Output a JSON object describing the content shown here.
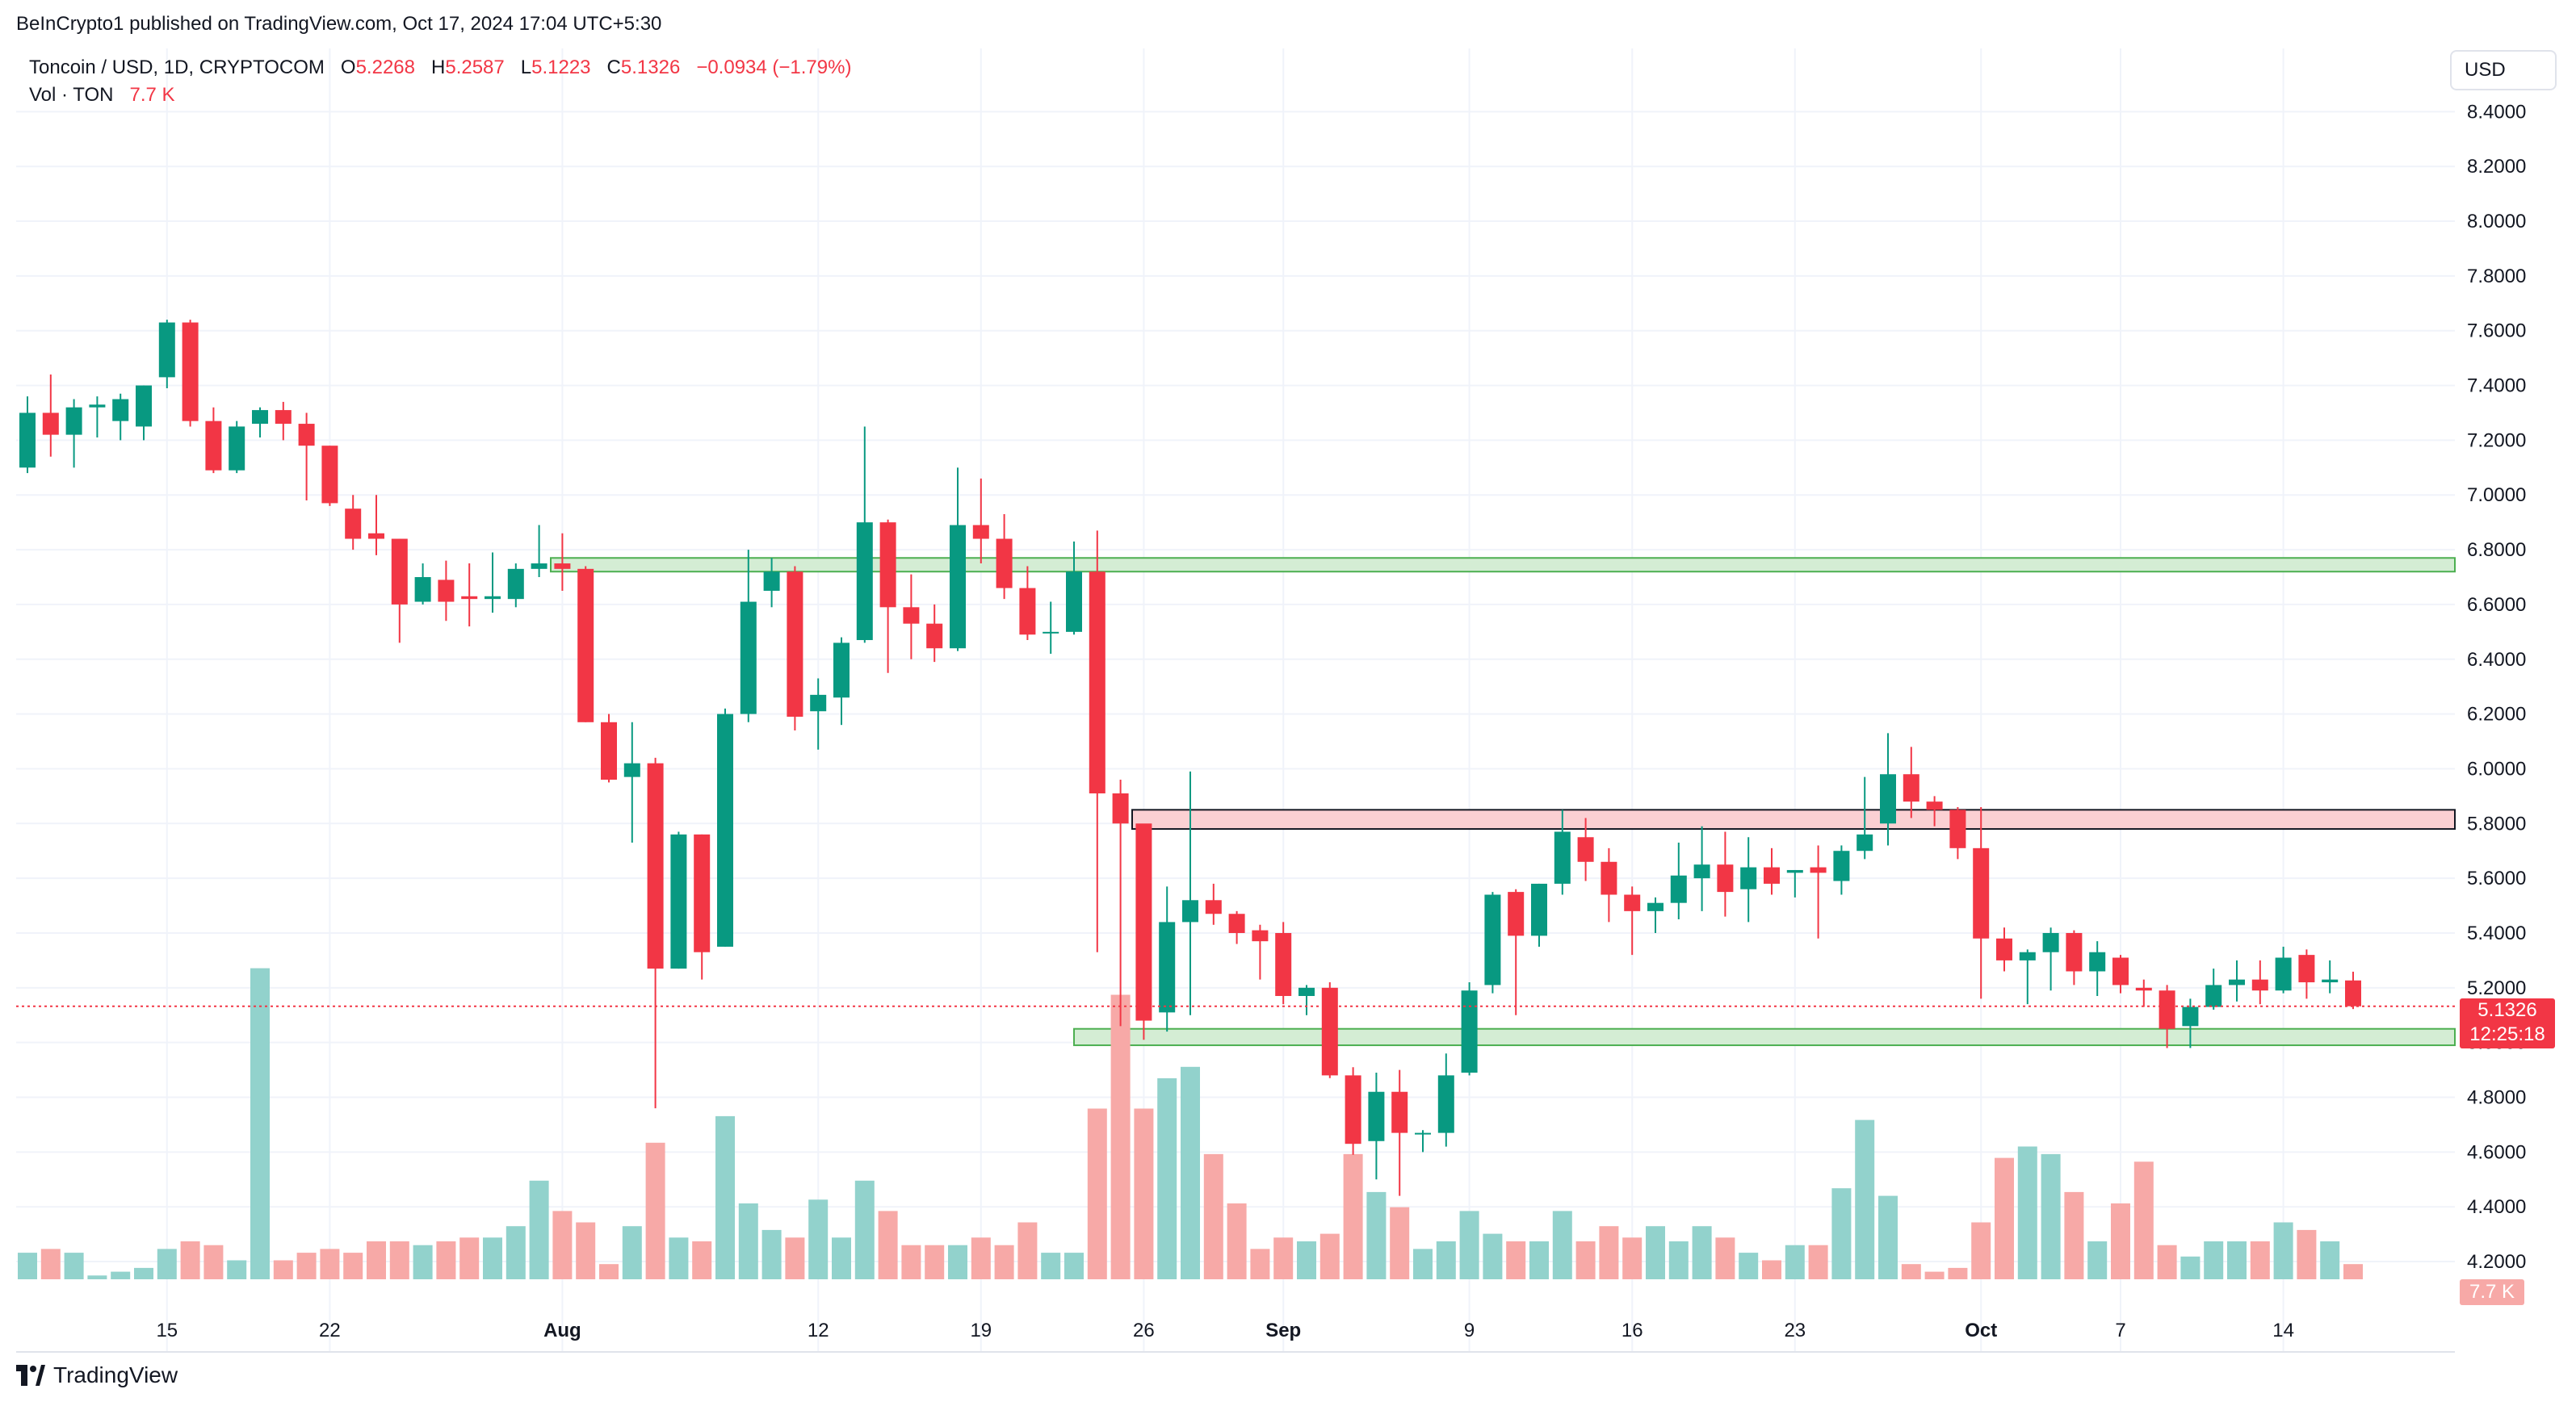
{
  "header": {
    "published": "BeInCrypto1 published on TradingView.com, Oct 17, 2024 17:04 UTC+5:30",
    "symbol": "Toncoin / USD, 1D, CRYPTOCOM",
    "open_label": "O",
    "open": "5.2268",
    "high_label": "H",
    "high": "5.2587",
    "low_label": "L",
    "low": "5.1223",
    "close_label": "C",
    "close": "5.1326",
    "change": "−0.0934 (−1.79%)",
    "vol_label": "Vol · TON",
    "vol_value": "7.7 K"
  },
  "currency_button": "USD",
  "price_tag": {
    "price": "5.1326",
    "countdown": "12:25:18"
  },
  "volume_tag": "7.7 K",
  "brand": "TradingView",
  "colors": {
    "up": "#089981",
    "down": "#f23645",
    "up_volume": "#92d2cc",
    "down_volume": "#f7a9a7",
    "support_zone": "#d4edd4",
    "resistance_zone": "#fbd0d3"
  },
  "chart_data": {
    "type": "candlestick",
    "title": "Toncoin / USD, 1D, CRYPTOCOM",
    "ylim": [
      4.15,
      8.46
    ],
    "y_ticks": [
      "4.2000",
      "4.4000",
      "4.6000",
      "4.8000",
      "5.0000",
      "5.2000",
      "5.4000",
      "5.6000",
      "5.8000",
      "6.0000",
      "6.2000",
      "6.4000",
      "6.6000",
      "6.8000",
      "7.0000",
      "7.2000",
      "7.4000",
      "7.6000",
      "7.8000",
      "8.0000",
      "8.2000",
      "8.4000"
    ],
    "x_ticks": [
      {
        "label": "15",
        "index": 6
      },
      {
        "label": "22",
        "index": 13
      },
      {
        "label": "Aug",
        "index": 23
      },
      {
        "label": "12",
        "index": 34
      },
      {
        "label": "19",
        "index": 41
      },
      {
        "label": "26",
        "index": 48
      },
      {
        "label": "Sep",
        "index": 54
      },
      {
        "label": "9",
        "index": 62
      },
      {
        "label": "16",
        "index": 69
      },
      {
        "label": "23",
        "index": 76
      },
      {
        "label": "Oct",
        "index": 84
      },
      {
        "label": "7",
        "index": 90
      },
      {
        "label": "14",
        "index": 97
      }
    ],
    "candles": [
      {
        "o": 7.1,
        "h": 7.36,
        "l": 7.08,
        "c": 7.3,
        "v": 0.7
      },
      {
        "o": 7.3,
        "h": 7.44,
        "l": 7.14,
        "c": 7.22,
        "v": 0.8
      },
      {
        "o": 7.22,
        "h": 7.35,
        "l": 7.1,
        "c": 7.32,
        "v": 0.7
      },
      {
        "o": 7.32,
        "h": 7.36,
        "l": 7.21,
        "c": 7.33,
        "v": 0.1
      },
      {
        "o": 7.27,
        "h": 7.37,
        "l": 7.2,
        "c": 7.35,
        "v": 0.2
      },
      {
        "o": 7.25,
        "h": 7.4,
        "l": 7.2,
        "c": 7.4,
        "v": 0.3
      },
      {
        "o": 7.43,
        "h": 7.64,
        "l": 7.39,
        "c": 7.63,
        "v": 0.8
      },
      {
        "o": 7.63,
        "h": 7.64,
        "l": 7.25,
        "c": 7.27,
        "v": 1.0
      },
      {
        "o": 7.27,
        "h": 7.32,
        "l": 7.08,
        "c": 7.09,
        "v": 0.9
      },
      {
        "o": 7.09,
        "h": 7.27,
        "l": 7.08,
        "c": 7.25,
        "v": 0.5
      },
      {
        "o": 7.26,
        "h": 7.32,
        "l": 7.21,
        "c": 7.31,
        "v": 8.2
      },
      {
        "o": 7.31,
        "h": 7.34,
        "l": 7.2,
        "c": 7.26,
        "v": 0.5
      },
      {
        "o": 7.26,
        "h": 7.3,
        "l": 6.98,
        "c": 7.18,
        "v": 0.7
      },
      {
        "o": 7.18,
        "h": 7.18,
        "l": 6.96,
        "c": 6.97,
        "v": 0.8
      },
      {
        "o": 6.95,
        "h": 7.0,
        "l": 6.8,
        "c": 6.84,
        "v": 0.7
      },
      {
        "o": 6.86,
        "h": 7.0,
        "l": 6.78,
        "c": 6.84,
        "v": 1.0
      },
      {
        "o": 6.84,
        "h": 6.84,
        "l": 6.46,
        "c": 6.6,
        "v": 1.0
      },
      {
        "o": 6.61,
        "h": 6.75,
        "l": 6.6,
        "c": 6.7,
        "v": 0.9
      },
      {
        "o": 6.69,
        "h": 6.76,
        "l": 6.54,
        "c": 6.61,
        "v": 1.0
      },
      {
        "o": 6.63,
        "h": 6.75,
        "l": 6.52,
        "c": 6.62,
        "v": 1.1
      },
      {
        "o": 6.62,
        "h": 6.79,
        "l": 6.57,
        "c": 6.63,
        "v": 1.1
      },
      {
        "o": 6.62,
        "h": 6.75,
        "l": 6.59,
        "c": 6.73,
        "v": 1.4
      },
      {
        "o": 6.73,
        "h": 6.89,
        "l": 6.7,
        "c": 6.75,
        "v": 2.6
      },
      {
        "o": 6.75,
        "h": 6.86,
        "l": 6.65,
        "c": 6.73,
        "v": 1.8
      },
      {
        "o": 6.73,
        "h": 6.74,
        "l": 6.17,
        "c": 6.17,
        "v": 1.5
      },
      {
        "o": 6.17,
        "h": 6.2,
        "l": 5.95,
        "c": 5.96,
        "v": 0.4
      },
      {
        "o": 5.97,
        "h": 6.17,
        "l": 5.73,
        "c": 6.02,
        "v": 1.4
      },
      {
        "o": 6.02,
        "h": 6.04,
        "l": 4.76,
        "c": 5.27,
        "v": 3.6
      },
      {
        "o": 5.27,
        "h": 5.77,
        "l": 5.27,
        "c": 5.76,
        "v": 1.1
      },
      {
        "o": 5.76,
        "h": 5.76,
        "l": 5.23,
        "c": 5.33,
        "v": 1.0
      },
      {
        "o": 5.35,
        "h": 6.22,
        "l": 5.35,
        "c": 6.2,
        "v": 4.3
      },
      {
        "o": 6.2,
        "h": 6.8,
        "l": 6.17,
        "c": 6.61,
        "v": 2.0
      },
      {
        "o": 6.65,
        "h": 6.77,
        "l": 6.59,
        "c": 6.72,
        "v": 1.3
      },
      {
        "o": 6.72,
        "h": 6.74,
        "l": 6.14,
        "c": 6.19,
        "v": 1.1
      },
      {
        "o": 6.21,
        "h": 6.33,
        "l": 6.07,
        "c": 6.27,
        "v": 2.1
      },
      {
        "o": 6.26,
        "h": 6.48,
        "l": 6.16,
        "c": 6.46,
        "v": 1.1
      },
      {
        "o": 6.47,
        "h": 7.25,
        "l": 6.46,
        "c": 6.9,
        "v": 2.6
      },
      {
        "o": 6.9,
        "h": 6.91,
        "l": 6.35,
        "c": 6.59,
        "v": 1.8
      },
      {
        "o": 6.59,
        "h": 6.71,
        "l": 6.4,
        "c": 6.53,
        "v": 0.9
      },
      {
        "o": 6.53,
        "h": 6.6,
        "l": 6.39,
        "c": 6.44,
        "v": 0.9
      },
      {
        "o": 6.44,
        "h": 7.1,
        "l": 6.43,
        "c": 6.89,
        "v": 0.9
      },
      {
        "o": 6.89,
        "h": 7.06,
        "l": 6.75,
        "c": 6.84,
        "v": 1.1
      },
      {
        "o": 6.84,
        "h": 6.93,
        "l": 6.62,
        "c": 6.66,
        "v": 0.9
      },
      {
        "o": 6.66,
        "h": 6.74,
        "l": 6.47,
        "c": 6.49,
        "v": 1.5
      },
      {
        "o": 6.5,
        "h": 6.61,
        "l": 6.42,
        "c": 6.5,
        "v": 0.7
      },
      {
        "o": 6.5,
        "h": 6.83,
        "l": 6.49,
        "c": 6.72,
        "v": 0.7
      },
      {
        "o": 6.72,
        "h": 6.87,
        "l": 5.33,
        "c": 5.91,
        "v": 4.5
      },
      {
        "o": 5.91,
        "h": 5.96,
        "l": 5.06,
        "c": 5.8,
        "v": 7.5
      },
      {
        "o": 5.8,
        "h": 5.79,
        "l": 5.01,
        "c": 5.08,
        "v": 4.5
      },
      {
        "o": 5.11,
        "h": 5.57,
        "l": 5.04,
        "c": 5.44,
        "v": 5.3
      },
      {
        "o": 5.44,
        "h": 5.99,
        "l": 5.1,
        "c": 5.52,
        "v": 5.6
      },
      {
        "o": 5.52,
        "h": 5.58,
        "l": 5.43,
        "c": 5.47,
        "v": 3.3
      },
      {
        "o": 5.47,
        "h": 5.48,
        "l": 5.36,
        "c": 5.4,
        "v": 2.0
      },
      {
        "o": 5.41,
        "h": 5.43,
        "l": 5.23,
        "c": 5.37,
        "v": 0.8
      },
      {
        "o": 5.4,
        "h": 5.44,
        "l": 5.14,
        "c": 5.17,
        "v": 1.1
      },
      {
        "o": 5.17,
        "h": 5.21,
        "l": 5.1,
        "c": 5.2,
        "v": 1.0
      },
      {
        "o": 5.2,
        "h": 5.22,
        "l": 4.87,
        "c": 4.88,
        "v": 1.2
      },
      {
        "o": 4.88,
        "h": 4.91,
        "l": 4.59,
        "c": 4.63,
        "v": 3.3
      },
      {
        "o": 4.64,
        "h": 4.89,
        "l": 4.5,
        "c": 4.82,
        "v": 2.3
      },
      {
        "o": 4.82,
        "h": 4.9,
        "l": 4.44,
        "c": 4.67,
        "v": 1.9
      },
      {
        "o": 4.67,
        "h": 4.68,
        "l": 4.6,
        "c": 4.67,
        "v": 0.8
      },
      {
        "o": 4.67,
        "h": 4.96,
        "l": 4.62,
        "c": 4.88,
        "v": 1.0
      },
      {
        "o": 4.89,
        "h": 5.22,
        "l": 4.88,
        "c": 5.19,
        "v": 1.8
      },
      {
        "o": 5.21,
        "h": 5.55,
        "l": 5.18,
        "c": 5.54,
        "v": 1.2
      },
      {
        "o": 5.55,
        "h": 5.56,
        "l": 5.1,
        "c": 5.39,
        "v": 1.0
      },
      {
        "o": 5.39,
        "h": 5.58,
        "l": 5.35,
        "c": 5.58,
        "v": 1.0
      },
      {
        "o": 5.58,
        "h": 5.85,
        "l": 5.54,
        "c": 5.77,
        "v": 1.8
      },
      {
        "o": 5.75,
        "h": 5.82,
        "l": 5.59,
        "c": 5.66,
        "v": 1.0
      },
      {
        "o": 5.66,
        "h": 5.71,
        "l": 5.44,
        "c": 5.54,
        "v": 1.4
      },
      {
        "o": 5.54,
        "h": 5.57,
        "l": 5.32,
        "c": 5.48,
        "v": 1.1
      },
      {
        "o": 5.48,
        "h": 5.53,
        "l": 5.4,
        "c": 5.51,
        "v": 1.4
      },
      {
        "o": 5.51,
        "h": 5.73,
        "l": 5.45,
        "c": 5.61,
        "v": 1.0
      },
      {
        "o": 5.6,
        "h": 5.79,
        "l": 5.48,
        "c": 5.65,
        "v": 1.4
      },
      {
        "o": 5.65,
        "h": 5.77,
        "l": 5.46,
        "c": 5.55,
        "v": 1.1
      },
      {
        "o": 5.56,
        "h": 5.75,
        "l": 5.44,
        "c": 5.64,
        "v": 0.7
      },
      {
        "o": 5.64,
        "h": 5.71,
        "l": 5.54,
        "c": 5.58,
        "v": 0.5
      },
      {
        "o": 5.62,
        "h": 5.63,
        "l": 5.53,
        "c": 5.63,
        "v": 0.9
      },
      {
        "o": 5.64,
        "h": 5.72,
        "l": 5.38,
        "c": 5.62,
        "v": 0.9
      },
      {
        "o": 5.59,
        "h": 5.72,
        "l": 5.54,
        "c": 5.7,
        "v": 2.4
      },
      {
        "o": 5.7,
        "h": 5.97,
        "l": 5.67,
        "c": 5.76,
        "v": 4.2
      },
      {
        "o": 5.8,
        "h": 6.13,
        "l": 5.72,
        "c": 5.98,
        "v": 2.2
      },
      {
        "o": 5.98,
        "h": 6.08,
        "l": 5.82,
        "c": 5.88,
        "v": 0.4
      },
      {
        "o": 5.88,
        "h": 5.9,
        "l": 5.79,
        "c": 5.85,
        "v": 0.2
      },
      {
        "o": 5.85,
        "h": 5.86,
        "l": 5.67,
        "c": 5.71,
        "v": 0.3
      },
      {
        "o": 5.71,
        "h": 5.86,
        "l": 5.16,
        "c": 5.38,
        "v": 1.5
      },
      {
        "o": 5.38,
        "h": 5.42,
        "l": 5.26,
        "c": 5.3,
        "v": 3.2
      },
      {
        "o": 5.3,
        "h": 5.34,
        "l": 5.14,
        "c": 5.33,
        "v": 3.5
      },
      {
        "o": 5.33,
        "h": 5.42,
        "l": 5.19,
        "c": 5.4,
        "v": 3.3
      },
      {
        "o": 5.4,
        "h": 5.41,
        "l": 5.21,
        "c": 5.26,
        "v": 2.3
      },
      {
        "o": 5.26,
        "h": 5.37,
        "l": 5.17,
        "c": 5.33,
        "v": 1.0
      },
      {
        "o": 5.31,
        "h": 5.32,
        "l": 5.18,
        "c": 5.21,
        "v": 2.0
      },
      {
        "o": 5.2,
        "h": 5.23,
        "l": 5.13,
        "c": 5.19,
        "v": 3.1
      },
      {
        "o": 5.19,
        "h": 5.21,
        "l": 4.98,
        "c": 5.05,
        "v": 0.9
      },
      {
        "o": 5.06,
        "h": 5.16,
        "l": 4.98,
        "c": 5.13,
        "v": 0.6
      },
      {
        "o": 5.13,
        "h": 5.27,
        "l": 5.12,
        "c": 5.21,
        "v": 1.0
      },
      {
        "o": 5.21,
        "h": 5.3,
        "l": 5.15,
        "c": 5.23,
        "v": 1.0
      },
      {
        "o": 5.23,
        "h": 5.3,
        "l": 5.14,
        "c": 5.19,
        "v": 1.0
      },
      {
        "o": 5.19,
        "h": 5.35,
        "l": 5.18,
        "c": 5.31,
        "v": 1.5
      },
      {
        "o": 5.32,
        "h": 5.34,
        "l": 5.16,
        "c": 5.22,
        "v": 1.3
      },
      {
        "o": 5.22,
        "h": 5.3,
        "l": 5.18,
        "c": 5.23,
        "v": 1.0
      },
      {
        "o": 5.2268,
        "h": 5.2587,
        "l": 5.1223,
        "c": 5.1326,
        "v": 0.4
      }
    ],
    "zones": [
      {
        "name": "support",
        "from_index": 22.5,
        "low": 6.72,
        "high": 6.77
      },
      {
        "name": "resistance",
        "from_index": 47.5,
        "low": 5.78,
        "high": 5.85
      },
      {
        "name": "support",
        "from_index": 45.0,
        "low": 4.99,
        "high": 5.05
      }
    ]
  }
}
